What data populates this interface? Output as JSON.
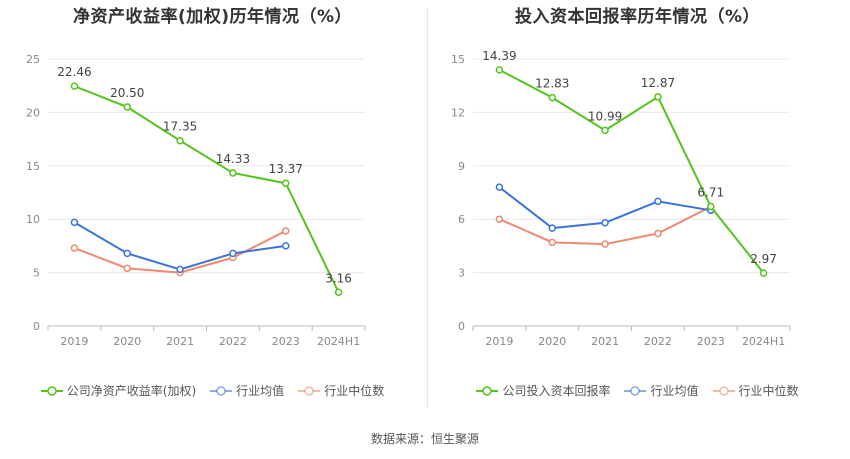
{
  "chart_data": [
    {
      "type": "line",
      "title": "净资产收益率(加权)历年情况（%）",
      "categories": [
        "2019",
        "2020",
        "2021",
        "2022",
        "2023",
        "2024H1"
      ],
      "ylim": [
        0,
        25
      ],
      "yticks": [
        "0",
        "5",
        "10",
        "15",
        "20",
        "25"
      ],
      "grid": true,
      "legend_position": "bottom",
      "series": [
        {
          "name": "公司净资产收益率(加权)",
          "color": "#52c41a",
          "values": [
            22.46,
            20.5,
            17.35,
            14.33,
            13.37,
            3.16
          ],
          "labels": [
            "22.46",
            "20.50",
            "17.35",
            "14.33",
            "13.37",
            "3.16"
          ]
        },
        {
          "name": "行业均值",
          "color": "#3b73dc",
          "values": [
            9.7,
            6.8,
            5.3,
            6.8,
            7.5,
            null
          ],
          "labels": []
        },
        {
          "name": "行业中位数",
          "color": "#f08a6e",
          "values": [
            7.3,
            5.4,
            5.0,
            6.4,
            8.9,
            null
          ],
          "labels": []
        }
      ]
    },
    {
      "type": "line",
      "title": "投入资本回报率历年情况（%）",
      "categories": [
        "2019",
        "2020",
        "2021",
        "2022",
        "2023",
        "2024H1"
      ],
      "ylim": [
        0,
        15
      ],
      "yticks": [
        "0",
        "3",
        "6",
        "9",
        "12",
        "15"
      ],
      "grid": true,
      "legend_position": "bottom",
      "series": [
        {
          "name": "公司投入资本回报率",
          "color": "#52c41a",
          "values": [
            14.39,
            12.83,
            10.99,
            12.87,
            6.71,
            2.97
          ],
          "labels": [
            "14.39",
            "12.83",
            "10.99",
            "12.87",
            "6.71",
            "2.97"
          ]
        },
        {
          "name": "行业均值",
          "color": "#3b73dc",
          "values": [
            7.8,
            5.5,
            5.8,
            7.0,
            6.5,
            null
          ],
          "labels": []
        },
        {
          "name": "行业中位数",
          "color": "#f08a6e",
          "values": [
            6.0,
            4.7,
            4.6,
            5.2,
            6.7,
            null
          ],
          "labels": []
        }
      ]
    }
  ],
  "source_text": "数据来源：恒生聚源"
}
